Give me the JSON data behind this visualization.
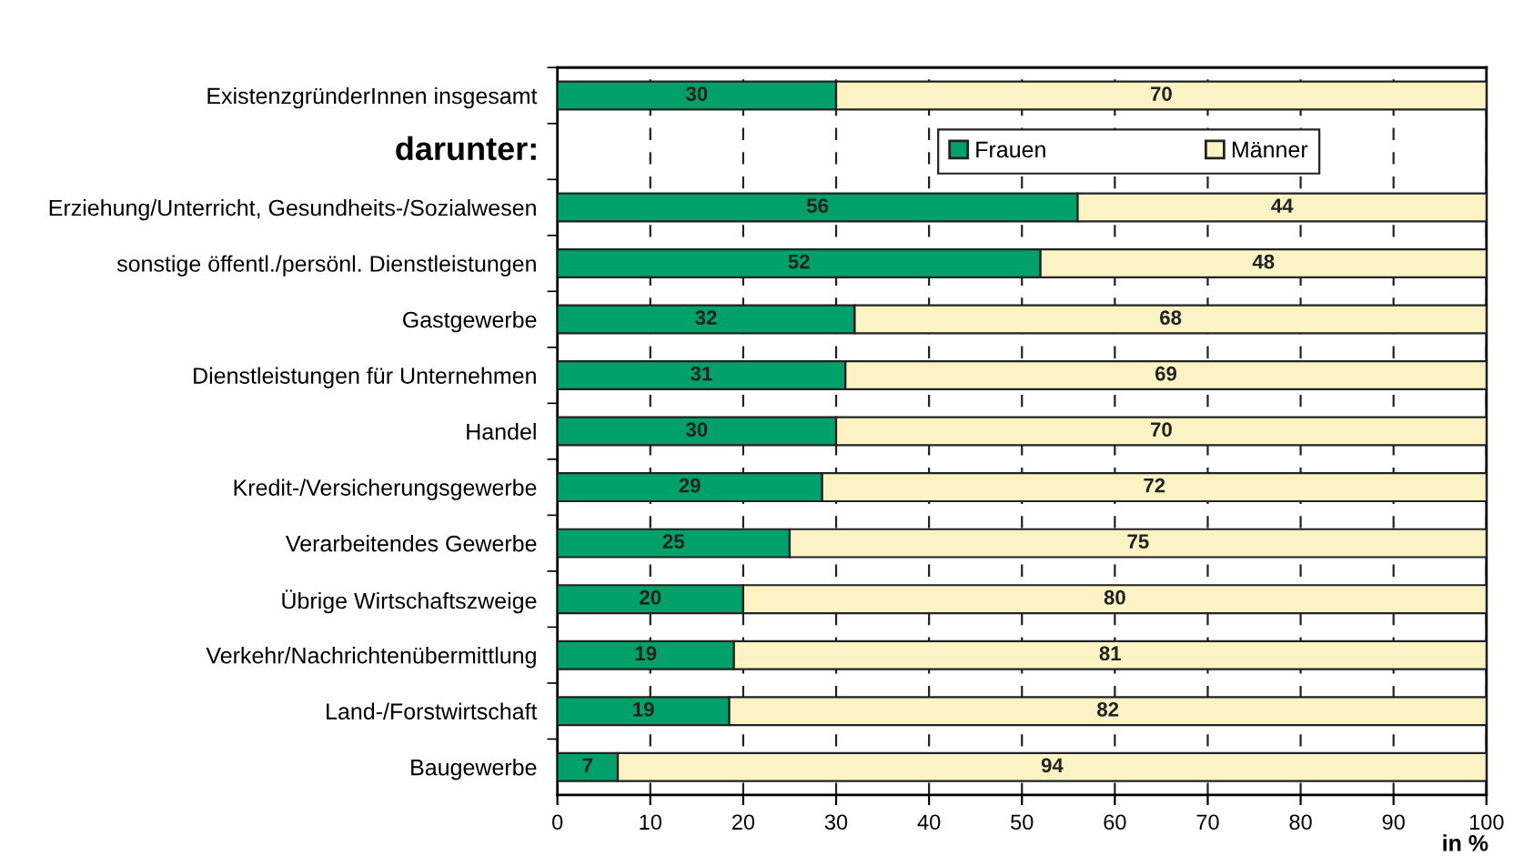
{
  "chart_data": {
    "type": "bar",
    "orientation": "horizontal",
    "stacked": true,
    "categories": [
      "ExistenzgründerInnen insgesamt",
      null,
      "Erziehung/Unterricht, Gesundheits-/Sozialwesen",
      "sonstige öffentl./persönl. Dienstleistungen",
      "Gastgewerbe",
      "Dienstleistungen für Unternehmen",
      "Handel",
      "Kredit-/Versicherungsgewerbe",
      "Verarbeitendes Gewerbe",
      "Übrige Wirtschaftszweige",
      "Verkehr/Nachrichtenübermittlung",
      "Land-/Forstwirtschaft",
      "Baugewerbe"
    ],
    "series": [
      {
        "name": "Frauen",
        "color": "#00a06a",
        "values": [
          30,
          null,
          56,
          52,
          32,
          31,
          30,
          28.5,
          25,
          20,
          19,
          18.5,
          6.5
        ],
        "value_labels": [
          "30",
          null,
          "56",
          "52",
          "32",
          "31",
          "30",
          "29",
          "25",
          "20",
          "19",
          "19",
          "7"
        ]
      },
      {
        "name": "Männer",
        "color": "#fbf3c3",
        "values": [
          70,
          null,
          44,
          48,
          68,
          69,
          70,
          71.5,
          75,
          80,
          81,
          81.5,
          93.5
        ],
        "value_labels": [
          "70",
          null,
          "44",
          "48",
          "68",
          "69",
          "70",
          "72",
          "75",
          "80",
          "81",
          "82",
          "94"
        ]
      }
    ],
    "xlim": [
      0,
      100
    ],
    "xticks": [
      0,
      10,
      20,
      30,
      40,
      50,
      60,
      70,
      80,
      90,
      100
    ],
    "xlabel": "in %",
    "annotations": [
      "darunter:"
    ],
    "grid": "x",
    "line_style": "dashed",
    "legend": "top right"
  }
}
